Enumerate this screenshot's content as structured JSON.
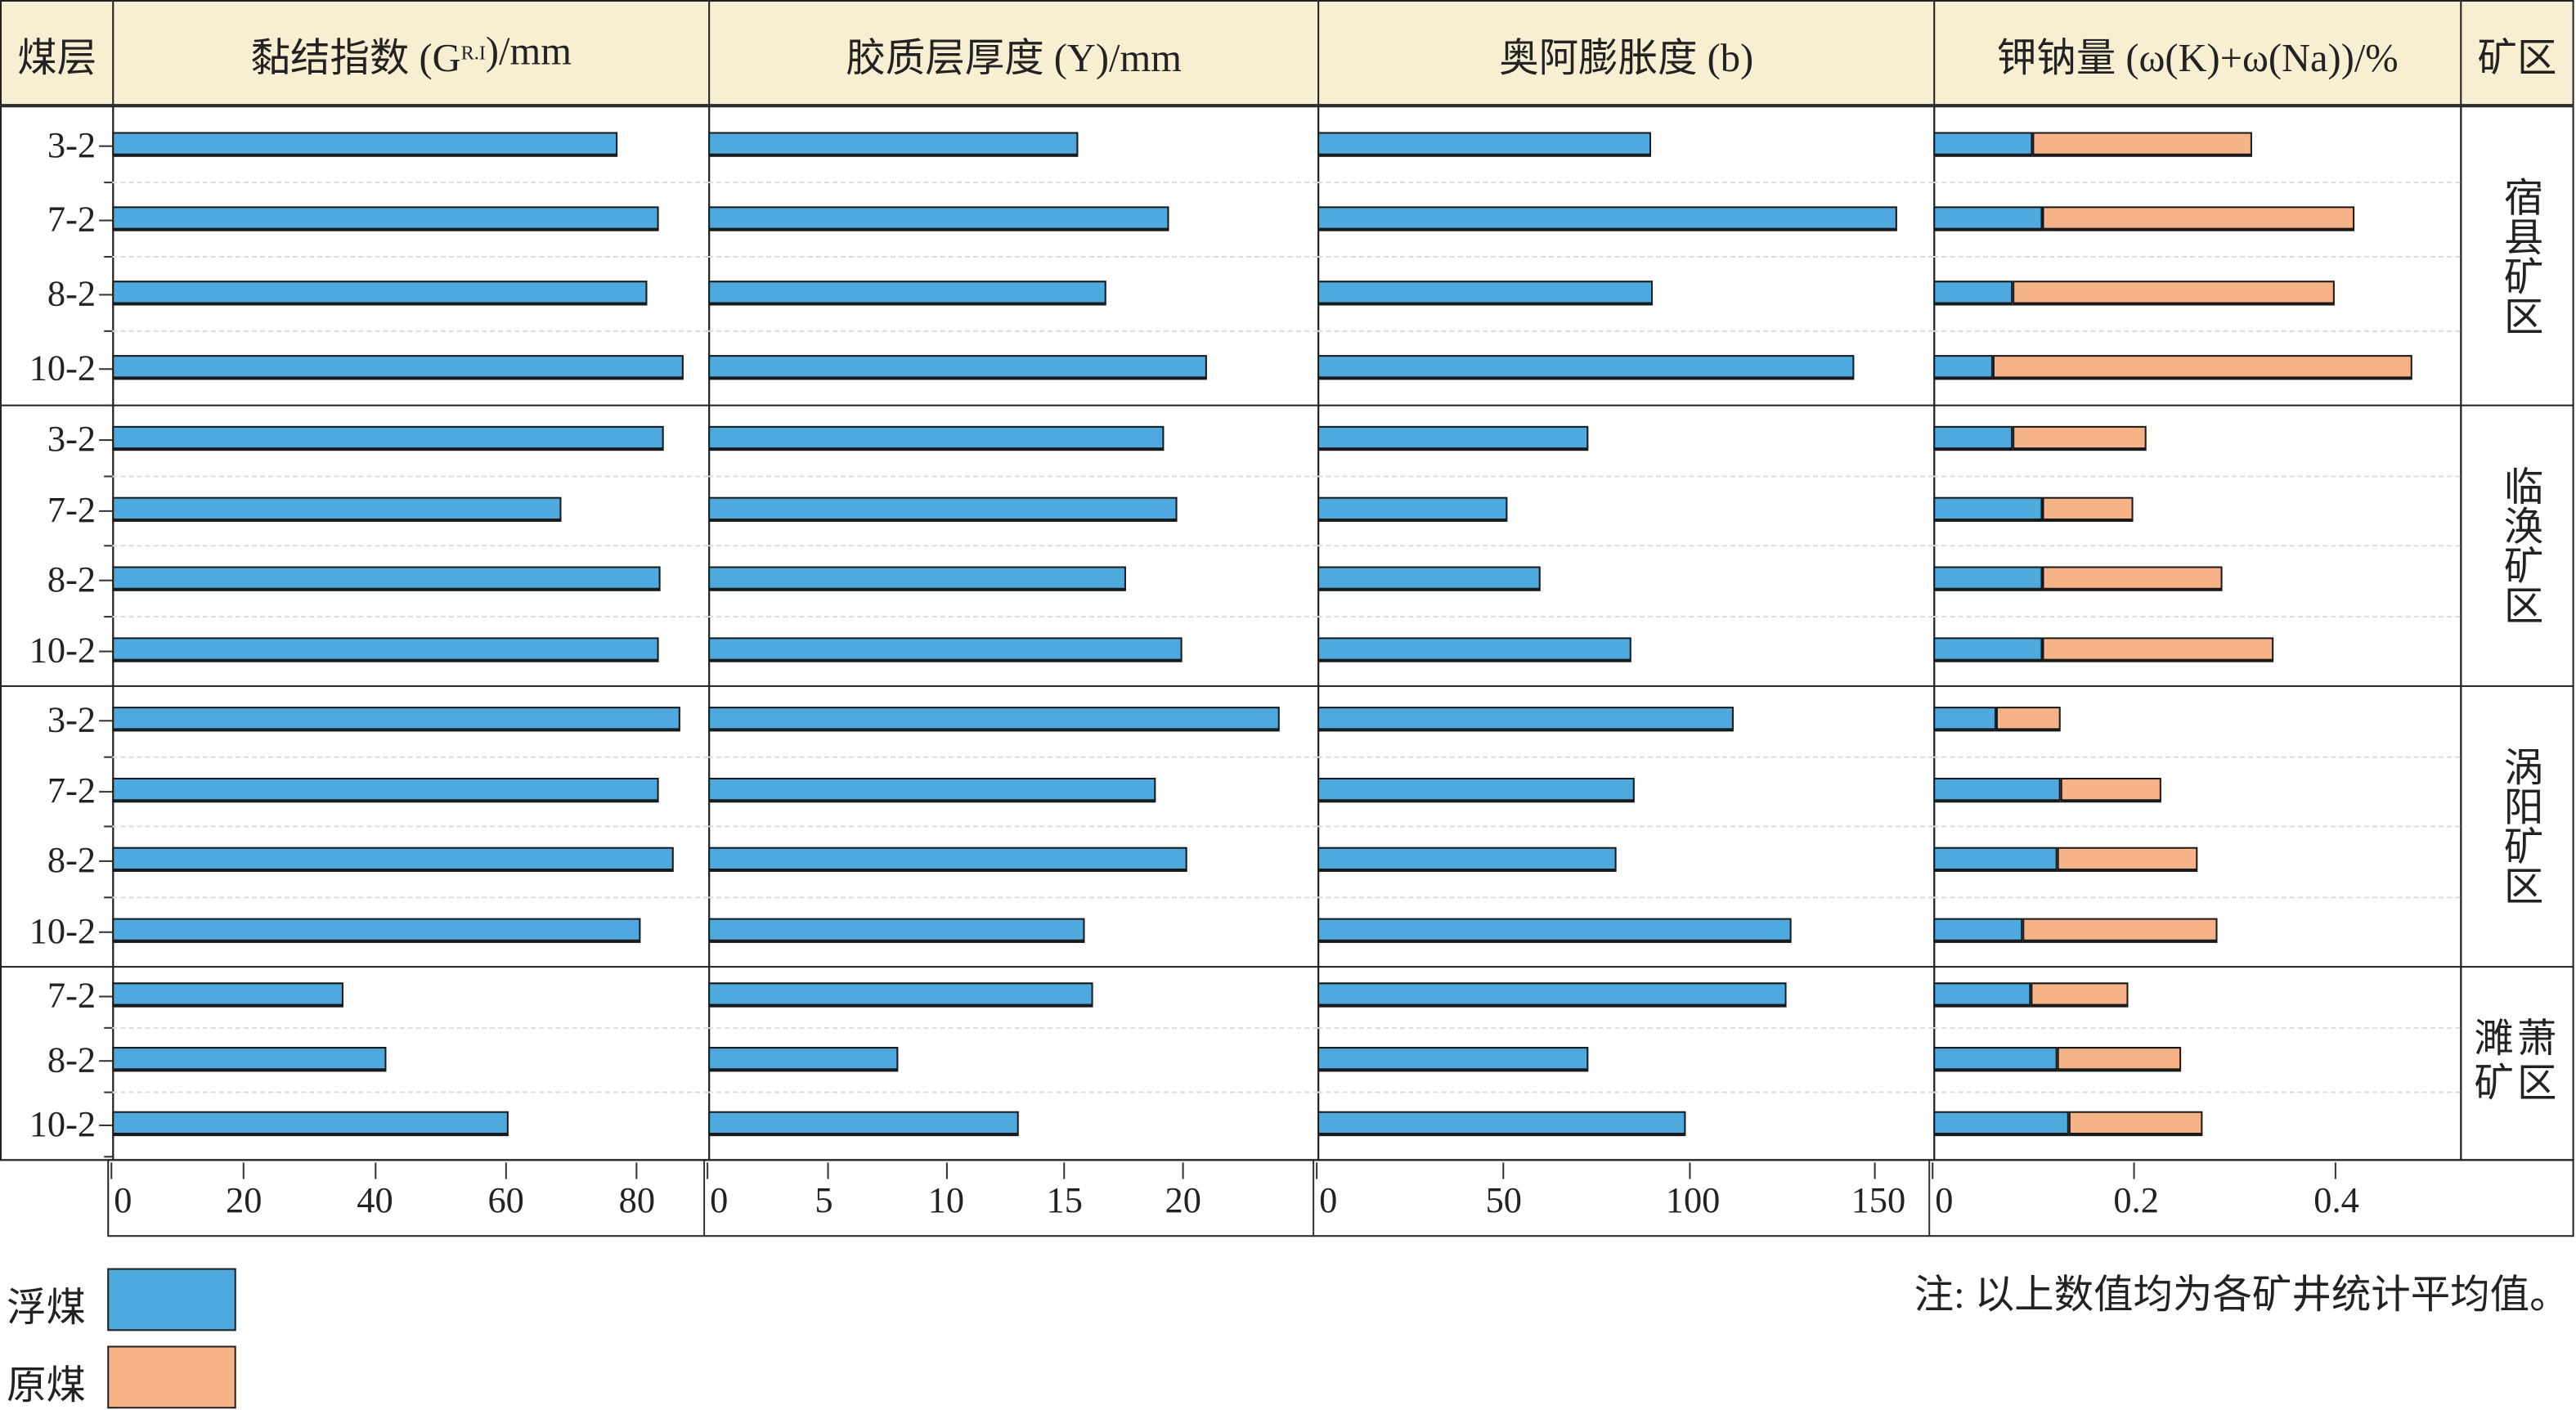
{
  "headers": {
    "seam": "煤层",
    "panels": [
      "黏结指数 (G",
      "胶质层厚度 (Y)/mm",
      "奥阿膨胀度 (b)",
      "钾钠量 (ω(K)+ω(Na))/%"
    ],
    "gri_sub": "R.I",
    "gri_tail": ")/mm",
    "mine": "矿区"
  },
  "colors": {
    "float": "#4ea9df",
    "raw": "#f6b388",
    "header_bg": "#f8efd3"
  },
  "legend": {
    "float": "浮煤",
    "raw": "原煤"
  },
  "note": "注: 以上数值均为各矿井统计平均值。",
  "chart_data": {
    "type": "bar",
    "orientation": "horizontal",
    "grid": "dashed horizontal",
    "legend_position": "bottom-left",
    "groups": [
      {
        "mine": "宿县矿区",
        "seams": [
          "3-2",
          "7-2",
          "8-2",
          "10-2"
        ]
      },
      {
        "mine": "临涣矿区",
        "seams": [
          "3-2",
          "7-2",
          "8-2",
          "10-2"
        ]
      },
      {
        "mine": "涡阳矿区",
        "seams": [
          "3-2",
          "7-2",
          "8-2",
          "10-2"
        ]
      },
      {
        "mine": "濉萧矿区",
        "seams": [
          "7-2",
          "8-2",
          "10-2"
        ]
      }
    ],
    "panels": [
      {
        "xlabel": "黏结指数 (GR.I)/mm",
        "xlim": [
          0,
          91
        ],
        "ticks": [
          0,
          20,
          40,
          60,
          80
        ],
        "tick_labels": [
          "0",
          "20",
          "40",
          "60",
          "80"
        ],
        "series": [
          {
            "name": "浮煤",
            "values": [
              77.2,
              83.5,
              81.7,
              87.3,
              84.3,
              68.5,
              83.8,
              83.5,
              86.8,
              83.5,
              85.8,
              80.7,
              35.3,
              41.9,
              60.4
            ]
          }
        ]
      },
      {
        "xlabel": "胶质层厚度 (Y)/mm",
        "xlim": [
          0,
          25.7
        ],
        "ticks": [
          0,
          5,
          10,
          15,
          20
        ],
        "tick_labels": [
          "0",
          "5",
          "10",
          "15",
          "20"
        ],
        "series": [
          {
            "name": "浮煤",
            "values": [
              15.6,
              19.4,
              16.8,
              21.0,
              19.2,
              19.8,
              17.6,
              20.0,
              24.1,
              18.9,
              20.2,
              15.9,
              16.2,
              8.0,
              13.1
            ]
          }
        ]
      },
      {
        "xlabel": "奥阿膨胀度 (b)",
        "xlim": [
          0,
          166
        ],
        "ticks": [
          0,
          50,
          100,
          150
        ],
        "tick_labels": [
          "0",
          "50",
          "100",
          "150"
        ],
        "series": [
          {
            "name": "浮煤",
            "values": [
              89.7,
              156,
              90.2,
              144.6,
              72.8,
              51.3,
              60.3,
              84.4,
              112,
              85.3,
              80.4,
              127.7,
              126.3,
              72.8,
              99.1
            ]
          }
        ]
      },
      {
        "xlabel": "钾钠量 (ω(K)+ω(Na))/%",
        "xlim": [
          0,
          0.526
        ],
        "ticks": [
          0,
          0.2,
          0.4
        ],
        "tick_labels": [
          "0",
          "0.2",
          "0.4"
        ],
        "stacked": true,
        "series": [
          {
            "name": "浮煤",
            "values": [
              0.099,
              0.109,
              0.079,
              0.06,
              0.079,
              0.109,
              0.109,
              0.109,
              0.063,
              0.127,
              0.124,
              0.089,
              0.098,
              0.124,
              0.136
            ]
          },
          {
            "name": "原煤",
            "values": [
              0.319,
              0.42,
              0.4,
              0.479,
              0.212,
              0.2,
              0.289,
              0.34,
              0.127,
              0.228,
              0.264,
              0.284,
              0.195,
              0.248,
              0.269
            ]
          }
        ]
      }
    ]
  }
}
